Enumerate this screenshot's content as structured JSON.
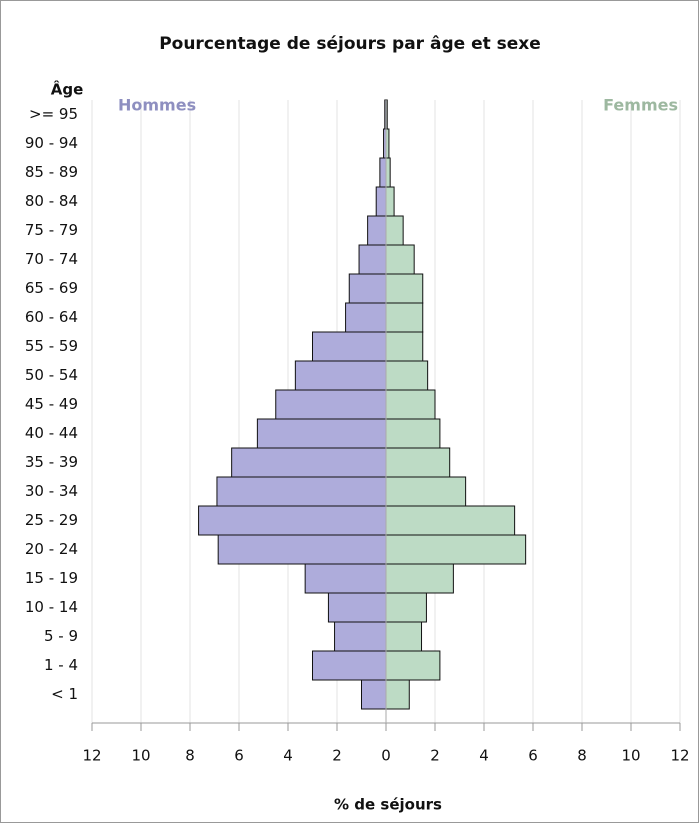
{
  "chart_data": {
    "type": "pyramid",
    "title": "Pourcentage de séjours par âge et sexe",
    "y_axis_label": "Âge",
    "x_axis_label": "% de séjours",
    "categories": [
      ">= 95",
      "90 - 94",
      "85 - 89",
      "80 - 84",
      "75 - 79",
      "70 - 74",
      "65 - 69",
      "60 - 64",
      "55 - 59",
      "50 - 54",
      "45 - 49",
      "40 - 44",
      "35 - 39",
      "30 - 34",
      "25 - 29",
      "20 - 24",
      "15 - 19",
      "10 - 14",
      "5 - 9",
      "1 - 4",
      "< 1"
    ],
    "series": [
      {
        "name": "Hommes",
        "color": "#aeacdb",
        "label_color": "#8e8fc0",
        "side": "left",
        "values": [
          0.05,
          0.1,
          0.25,
          0.4,
          0.75,
          1.1,
          1.5,
          1.65,
          3.0,
          3.7,
          4.5,
          5.25,
          6.3,
          6.9,
          7.65,
          6.85,
          3.3,
          2.35,
          2.1,
          3.0,
          1.0
        ]
      },
      {
        "name": "Femmes",
        "color": "#bddbc5",
        "label_color": "#9db8a0",
        "side": "right",
        "values": [
          0.05,
          0.12,
          0.17,
          0.33,
          0.7,
          1.15,
          1.5,
          1.5,
          1.5,
          1.7,
          2.0,
          2.2,
          2.6,
          3.25,
          5.25,
          5.7,
          2.75,
          1.65,
          1.45,
          2.2,
          0.95
        ]
      }
    ],
    "xlim": [
      0,
      12
    ],
    "xticks": [
      0,
      2,
      4,
      6,
      8,
      10,
      12
    ],
    "grid": true
  }
}
